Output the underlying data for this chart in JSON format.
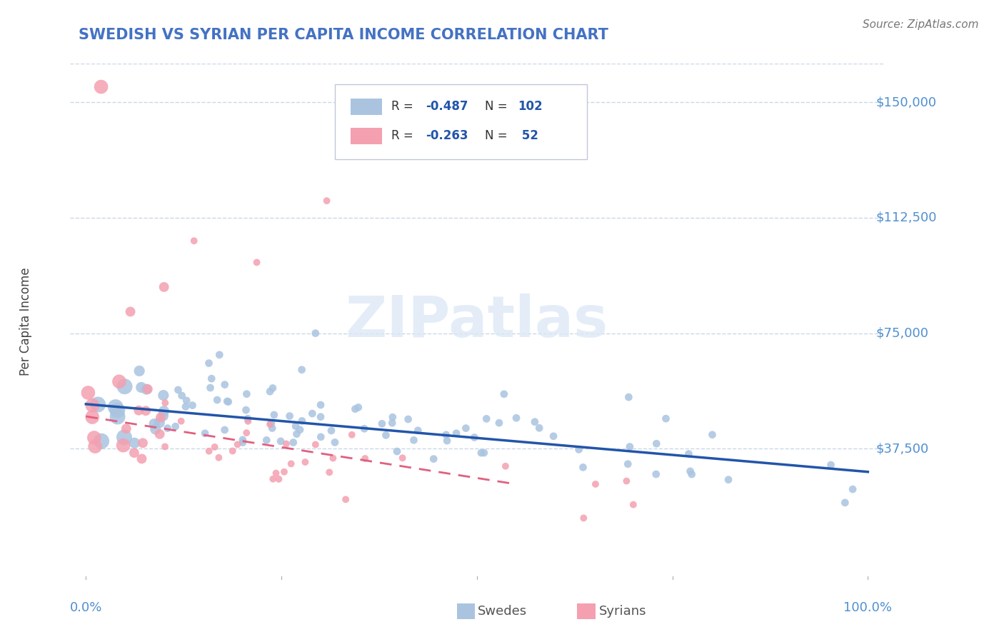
{
  "title": "SWEDISH VS SYRIAN PER CAPITA INCOME CORRELATION CHART",
  "title_color": "#4472c4",
  "source_text": "Source: ZipAtlas.com",
  "ylabel": "Per Capita Income",
  "ytick_values": [
    37500,
    75000,
    112500,
    150000
  ],
  "ytick_labels": [
    "$37,500",
    "$75,000",
    "$112,500",
    "$150,000"
  ],
  "ymax": 162500,
  "ymin": -5000,
  "xmin": -0.02,
  "xmax": 1.02,
  "watermark": "ZIPatlas",
  "swede_color": "#aac4e0",
  "syrian_color": "#f4a0b0",
  "swede_line_color": "#2255aa",
  "syrian_line_color": "#e06080",
  "grid_color": "#c8d8e8",
  "background_color": "#ffffff",
  "tick_color": "#5090d0",
  "swedes_seed": 42,
  "syrians_seed": 7,
  "swede_intercept": 52000,
  "swede_slope": -22000,
  "syrian_intercept": 48000,
  "syrian_slope": -40000,
  "legend_r_color": "#2255aa",
  "legend_n_color": "#2255aa"
}
